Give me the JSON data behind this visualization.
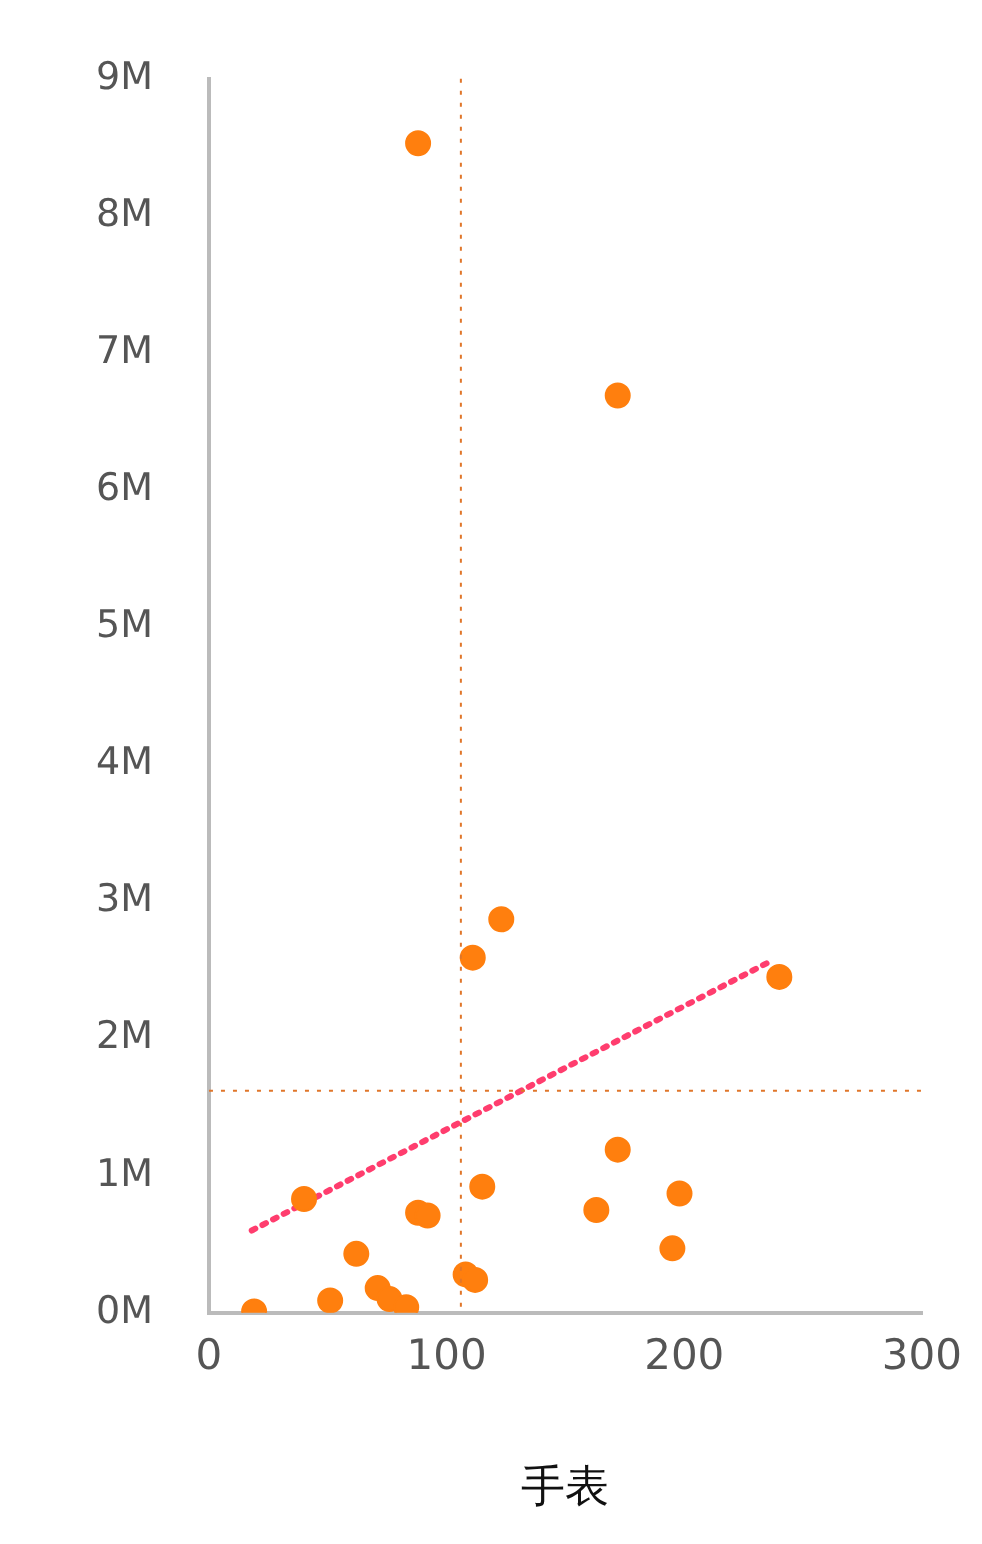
{
  "chart_data": {
    "type": "scatter",
    "xlabel": "手表",
    "xlim": [
      0,
      300
    ],
    "xticks": [
      0,
      100,
      200,
      300
    ],
    "ylim": [
      0,
      9000000
    ],
    "yticks": [
      {
        "value": 0,
        "label": "0M"
      },
      {
        "value": 1000000,
        "label": "1M"
      },
      {
        "value": 2000000,
        "label": "2M"
      },
      {
        "value": 3000000,
        "label": "3M"
      },
      {
        "value": 4000000,
        "label": "4M"
      },
      {
        "value": 5000000,
        "label": "5M"
      },
      {
        "value": 6000000,
        "label": "6M"
      },
      {
        "value": 7000000,
        "label": "7M"
      },
      {
        "value": 8000000,
        "label": "8M"
      },
      {
        "value": 9000000,
        "label": "9M"
      }
    ],
    "grid": false,
    "marker": "circle",
    "series": [
      {
        "type": "scatter",
        "color": "#ff7f0e",
        "x": [
          88,
          172,
          123,
          111,
          240,
          172,
          198,
          40,
          115,
          163,
          88,
          92,
          62,
          195,
          71,
          76,
          51,
          108,
          112,
          83,
          19
        ],
        "values": [
          8530000,
          6690000,
          2870000,
          2590000,
          2450000,
          1190000,
          870000,
          830000,
          920000,
          750000,
          730000,
          710000,
          430000,
          470000,
          180000,
          100000,
          90000,
          280000,
          240000,
          40000,
          10000
        ]
      },
      {
        "type": "line",
        "color": "#ff3d6e",
        "x": [
          18,
          237
        ],
        "values": [
          600000,
          2570000
        ],
        "line_style": "dotted",
        "marker": "none"
      }
    ],
    "ref_lines": [
      {
        "axis": "x",
        "value": 106,
        "color": "#e0762a",
        "line_style": "dotted"
      },
      {
        "axis": "y",
        "value": 1620000,
        "color": "#e0762a",
        "line_style": "dotted"
      }
    ]
  }
}
